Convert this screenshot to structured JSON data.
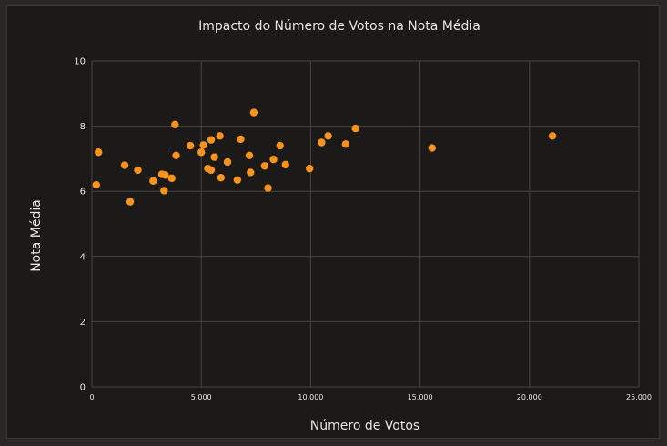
{
  "chart_data": {
    "type": "scatter",
    "title": "Impacto do Número de Votos na Nota Média",
    "xlabel": "Número de Votos",
    "ylabel": "Nota Média",
    "xlim": [
      0,
      25000
    ],
    "ylim": [
      0,
      10
    ],
    "x_ticks": [
      0,
      5000,
      10000,
      15000,
      20000,
      25000
    ],
    "x_tick_labels": [
      "0",
      "5.000",
      "10.000",
      "15.000",
      "20.000",
      "25.000"
    ],
    "y_ticks": [
      0,
      2,
      4,
      6,
      8,
      10
    ],
    "y_tick_labels": [
      "0",
      "2",
      "4",
      "6",
      "8",
      "10"
    ],
    "grid": true,
    "legend": false,
    "colors": {
      "point": "#f7931e",
      "background": "#1b1a19",
      "grid": "#454442",
      "text": "#e6e6e6"
    },
    "points": [
      {
        "x": 200,
        "y": 6.2
      },
      {
        "x": 300,
        "y": 7.2
      },
      {
        "x": 1500,
        "y": 6.8
      },
      {
        "x": 1750,
        "y": 5.68
      },
      {
        "x": 2100,
        "y": 6.65
      },
      {
        "x": 2800,
        "y": 6.32
      },
      {
        "x": 3200,
        "y": 6.52
      },
      {
        "x": 3300,
        "y": 6.02
      },
      {
        "x": 3350,
        "y": 6.5
      },
      {
        "x": 3650,
        "y": 6.4
      },
      {
        "x": 3800,
        "y": 8.05
      },
      {
        "x": 3850,
        "y": 7.1
      },
      {
        "x": 4500,
        "y": 7.4
      },
      {
        "x": 5000,
        "y": 7.2
      },
      {
        "x": 5100,
        "y": 7.42
      },
      {
        "x": 5300,
        "y": 6.7
      },
      {
        "x": 5450,
        "y": 7.58
      },
      {
        "x": 5450,
        "y": 6.65
      },
      {
        "x": 5600,
        "y": 7.05
      },
      {
        "x": 5850,
        "y": 7.7
      },
      {
        "x": 5900,
        "y": 6.42
      },
      {
        "x": 6200,
        "y": 6.9
      },
      {
        "x": 6650,
        "y": 6.35
      },
      {
        "x": 6800,
        "y": 7.6
      },
      {
        "x": 7200,
        "y": 7.1
      },
      {
        "x": 7250,
        "y": 6.58
      },
      {
        "x": 7400,
        "y": 8.42
      },
      {
        "x": 7900,
        "y": 6.78
      },
      {
        "x": 8050,
        "y": 6.1
      },
      {
        "x": 8300,
        "y": 6.98
      },
      {
        "x": 8600,
        "y": 7.4
      },
      {
        "x": 8850,
        "y": 6.82
      },
      {
        "x": 9950,
        "y": 6.7
      },
      {
        "x": 10500,
        "y": 7.5
      },
      {
        "x": 10800,
        "y": 7.7
      },
      {
        "x": 11600,
        "y": 7.45
      },
      {
        "x": 12050,
        "y": 7.93
      },
      {
        "x": 15550,
        "y": 7.33
      },
      {
        "x": 21050,
        "y": 7.7
      }
    ]
  }
}
